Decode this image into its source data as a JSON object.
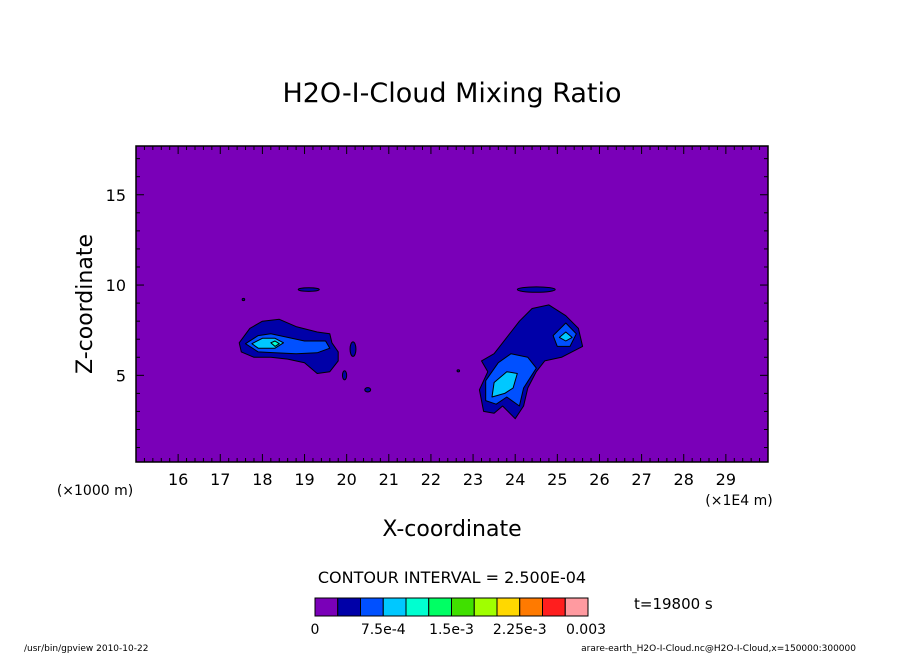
{
  "chart_data": {
    "type": "contour",
    "title": "H2O-I-Cloud Mixing Ratio",
    "xlabel": "X-coordinate",
    "ylabel": "Z-coordinate",
    "x_unit_left": "(×1000 m)",
    "x_unit_right": "(×1E4 m)",
    "x_ticks": [
      16,
      17,
      18,
      19,
      20,
      21,
      22,
      23,
      24,
      25,
      26,
      27,
      28,
      29
    ],
    "y_ticks": [
      5,
      10,
      15
    ],
    "xlim": [
      15.0,
      30.0
    ],
    "ylim": [
      0.2,
      17.7
    ],
    "contour_interval_label": "CONTOUR INTERVAL = 2.500E-04",
    "time_label": "t=19800 s",
    "colorbar": {
      "colors": [
        "#7a00b8",
        "#0000a8",
        "#0050ff",
        "#00c8ff",
        "#00ffd0",
        "#00ff64",
        "#40e000",
        "#a0ff00",
        "#ffd800",
        "#ff7a00",
        "#ff1e1e",
        "#ff9aa0"
      ],
      "tick_labels": [
        "0",
        "7.5e-4",
        "1.5e-3",
        "2.25e-3",
        "0.003"
      ],
      "tick_values": [
        0,
        0.00075,
        0.0015,
        0.00225,
        0.003
      ],
      "range": [
        0,
        0.003
      ]
    },
    "background_color": "#7a00b8",
    "cloud_regions": [
      {
        "name": "left",
        "outer": [
          [
            17.45,
            6.8
          ],
          [
            17.7,
            7.6
          ],
          [
            18.0,
            8.0
          ],
          [
            18.4,
            8.1
          ],
          [
            18.8,
            7.7
          ],
          [
            19.3,
            7.4
          ],
          [
            19.6,
            7.3
          ],
          [
            19.65,
            6.8
          ],
          [
            19.8,
            6.3
          ],
          [
            19.8,
            5.8
          ],
          [
            19.6,
            5.2
          ],
          [
            19.3,
            5.1
          ],
          [
            19.0,
            5.7
          ],
          [
            18.6,
            5.9
          ],
          [
            18.2,
            6.0
          ],
          [
            17.8,
            6.0
          ],
          [
            17.5,
            6.3
          ]
        ],
        "level2": [
          [
            17.6,
            6.75
          ],
          [
            17.9,
            7.2
          ],
          [
            18.2,
            7.3
          ],
          [
            18.6,
            7.1
          ],
          [
            19.0,
            6.9
          ],
          [
            19.5,
            6.9
          ],
          [
            19.6,
            6.5
          ],
          [
            19.3,
            6.25
          ],
          [
            18.8,
            6.2
          ],
          [
            18.3,
            6.25
          ],
          [
            17.9,
            6.3
          ]
        ],
        "level3": [
          [
            17.75,
            6.75
          ],
          [
            18.0,
            7.05
          ],
          [
            18.3,
            7.05
          ],
          [
            18.5,
            6.8
          ],
          [
            18.3,
            6.5
          ],
          [
            17.9,
            6.5
          ]
        ],
        "level4": [
          [
            18.2,
            6.8
          ],
          [
            18.3,
            6.9
          ],
          [
            18.4,
            6.75
          ],
          [
            18.3,
            6.6
          ]
        ]
      },
      {
        "name": "right",
        "outer": [
          [
            23.25,
            3.0
          ],
          [
            23.15,
            4.2
          ],
          [
            23.35,
            5.2
          ],
          [
            23.2,
            5.8
          ],
          [
            23.5,
            6.2
          ],
          [
            23.7,
            6.8
          ],
          [
            23.9,
            7.4
          ],
          [
            24.1,
            8.0
          ],
          [
            24.4,
            8.7
          ],
          [
            24.8,
            8.9
          ],
          [
            25.2,
            8.3
          ],
          [
            25.5,
            7.6
          ],
          [
            25.6,
            6.6
          ],
          [
            25.1,
            6.0
          ],
          [
            24.7,
            5.8
          ],
          [
            24.5,
            5.2
          ],
          [
            24.3,
            4.3
          ],
          [
            24.2,
            3.3
          ],
          [
            24.0,
            2.6
          ],
          [
            23.7,
            3.3
          ],
          [
            23.5,
            2.9
          ]
        ],
        "level2": [
          [
            23.3,
            3.6
          ],
          [
            23.3,
            4.7
          ],
          [
            23.6,
            5.7
          ],
          [
            23.9,
            6.2
          ],
          [
            24.3,
            6.0
          ],
          [
            24.5,
            5.4
          ],
          [
            24.2,
            4.3
          ],
          [
            24.1,
            3.3
          ],
          [
            23.8,
            3.8
          ],
          [
            23.55,
            3.4
          ]
        ],
        "level2b": [
          [
            24.9,
            7.2
          ],
          [
            25.2,
            7.9
          ],
          [
            25.45,
            7.3
          ],
          [
            25.3,
            6.6
          ],
          [
            25.0,
            6.6
          ]
        ],
        "level3": [
          [
            23.45,
            3.8
          ],
          [
            23.5,
            4.6
          ],
          [
            23.8,
            5.2
          ],
          [
            24.05,
            5.1
          ],
          [
            23.95,
            4.3
          ],
          [
            23.75,
            4.0
          ]
        ],
        "level3b": [
          [
            25.05,
            7.1
          ],
          [
            25.2,
            7.4
          ],
          [
            25.35,
            7.1
          ],
          [
            25.2,
            6.9
          ]
        ]
      }
    ],
    "small_features": [
      {
        "shape": "ellipse",
        "x": 19.1,
        "z": 9.75,
        "rx": 0.25,
        "rz": 0.1
      },
      {
        "shape": "ellipse",
        "x": 24.5,
        "z": 9.75,
        "rx": 0.45,
        "rz": 0.15
      },
      {
        "shape": "ellipse",
        "x": 20.15,
        "z": 6.45,
        "rx": 0.07,
        "rz": 0.4
      },
      {
        "shape": "ellipse",
        "x": 19.95,
        "z": 5.0,
        "rx": 0.05,
        "rz": 0.25
      },
      {
        "shape": "ellipse",
        "x": 20.5,
        "z": 4.2,
        "rx": 0.07,
        "rz": 0.12
      },
      {
        "shape": "ellipse",
        "x": 17.55,
        "z": 9.2,
        "rx": 0.03,
        "rz": 0.06
      },
      {
        "shape": "ellipse",
        "x": 22.65,
        "z": 5.25,
        "rx": 0.03,
        "rz": 0.06
      }
    ]
  },
  "footer": {
    "left": "/usr/bin/gpview  2010-10-22",
    "right": "arare-earth_H2O-I-Cloud.nc@H2O-I-Cloud,x=150000:300000"
  }
}
